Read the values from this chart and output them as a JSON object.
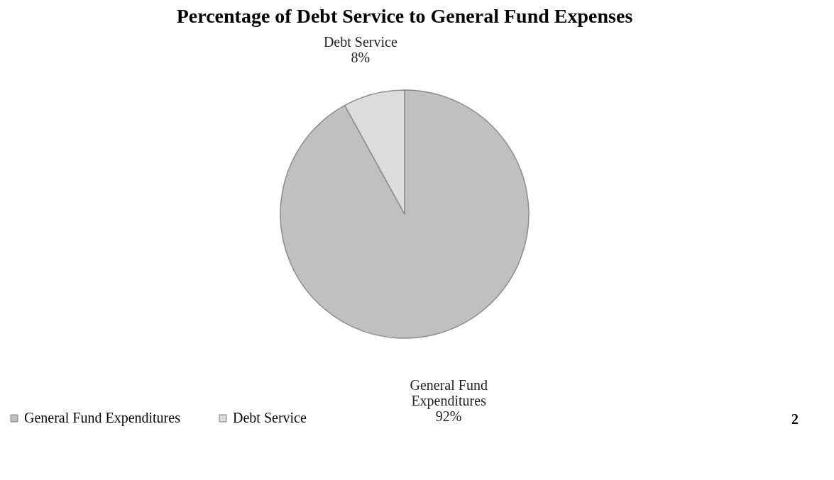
{
  "chart_data": {
    "type": "pie",
    "title": "Percentage of Debt Service to General Fund Expenses",
    "categories": [
      "General Fund Expenditures",
      "Debt Service"
    ],
    "values": [
      92,
      8
    ],
    "colors": [
      "#c0c0c0",
      "#dcdcdc"
    ],
    "value_labels": [
      "92%",
      "8%"
    ],
    "legend": "bottom",
    "annotations": [
      "2"
    ]
  }
}
